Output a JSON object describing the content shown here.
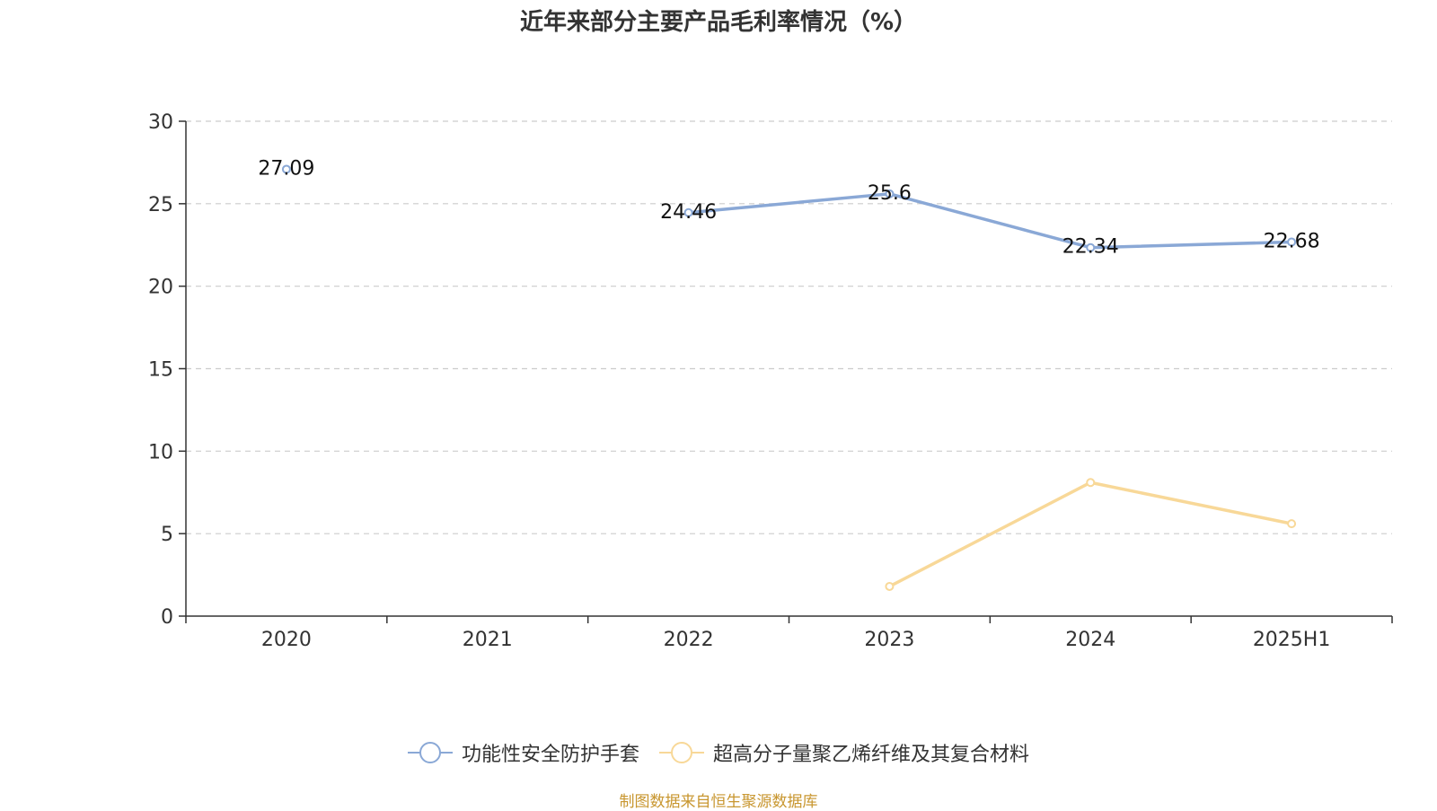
{
  "chart_data": {
    "type": "line",
    "title": "近年来部分主要产品毛利率情况（%）",
    "categories": [
      "2020",
      "2021",
      "2022",
      "2023",
      "2024",
      "2025H1"
    ],
    "ylim": [
      0,
      30
    ],
    "yticks": [
      "0",
      "5",
      "10",
      "15",
      "20",
      "25",
      "30"
    ],
    "grid": true,
    "legend_position": "bottom",
    "series": [
      {
        "name": "功能性安全防护手套",
        "color": "#8aa8d6",
        "values": [
          27.09,
          null,
          24.46,
          25.6,
          22.34,
          22.68
        ],
        "labels": [
          "27.09",
          "",
          "24.46",
          "25.6",
          "22.34",
          "22.68"
        ]
      },
      {
        "name": "超高分子量聚乙烯纤维及其复合材料",
        "color": "#f8d898",
        "values": [
          null,
          null,
          null,
          1.8,
          8.1,
          5.6
        ],
        "labels": [
          "",
          "",
          "",
          "",
          "",
          ""
        ]
      }
    ]
  },
  "source": "制图数据来自恒生聚源数据库"
}
